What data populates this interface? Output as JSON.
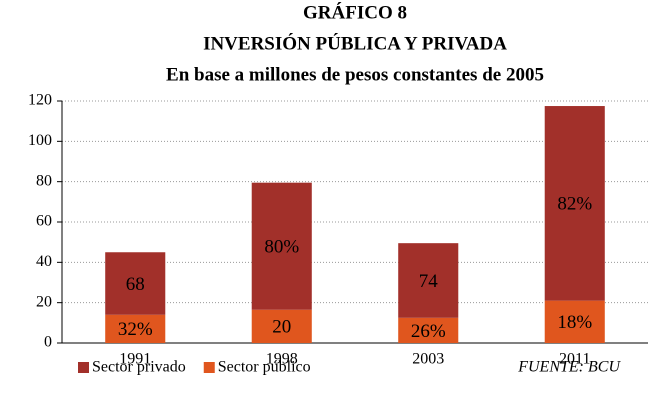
{
  "chart_data": {
    "type": "stacked_bar",
    "title": "GRÁFICO 8",
    "subtitle": "INVERSIÓN PÚBLICA Y PRIVADA",
    "subtitle2": "En base a millones de pesos constantes de 2005",
    "categories": [
      "1991",
      "1998",
      "2003",
      "2011"
    ],
    "series": [
      {
        "name": "Sector público",
        "color": "#e0561e",
        "values": [
          14,
          16.5,
          12.5,
          21
        ],
        "data_labels": [
          "32%",
          "20",
          "26%",
          "18%"
        ]
      },
      {
        "name": "Sector privado",
        "color": "#a2302a",
        "values": [
          31,
          63,
          37,
          96.5
        ],
        "data_labels": [
          "68",
          "80%",
          "74",
          "82%"
        ]
      }
    ],
    "ylim": [
      0,
      120
    ],
    "yticks": [
      0,
      20,
      40,
      60,
      80,
      100,
      120
    ],
    "grid": true,
    "legend": "bottom",
    "source": "FUENTE: BCU"
  }
}
